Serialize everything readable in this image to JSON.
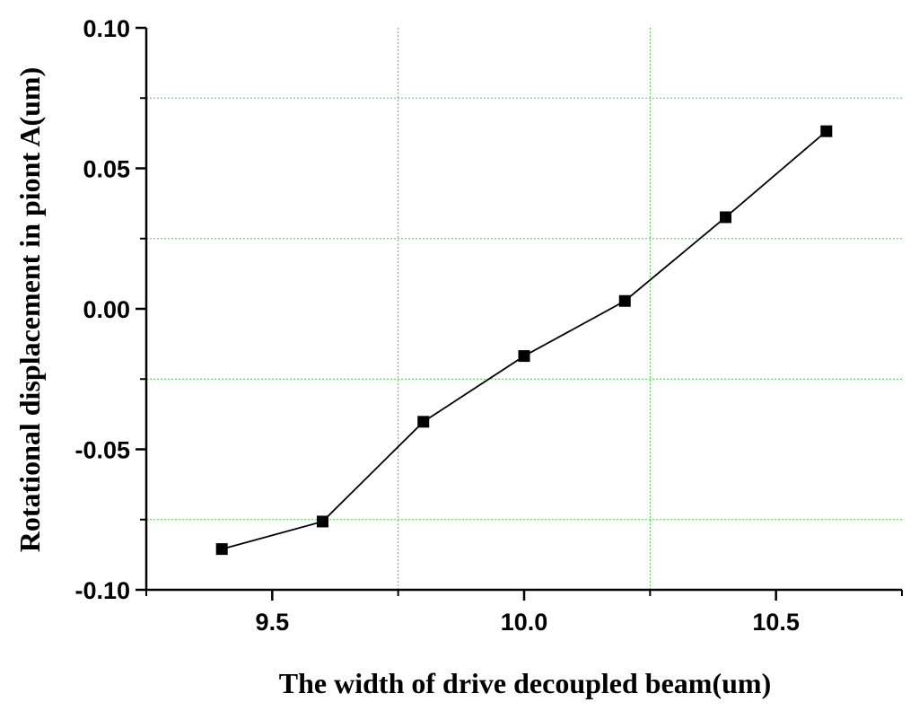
{
  "chart_data": {
    "type": "line",
    "title": "",
    "xlabel": "The width of drive decoupled beam(um)",
    "ylabel": "Rotational displacement in piont A(um)",
    "xlim": [
      9.25,
      10.75
    ],
    "ylim": [
      -0.1,
      0.1
    ],
    "x_ticks": [
      9.5,
      10.0,
      10.5
    ],
    "x_tick_labels": [
      "9.5",
      "10.0",
      "10.5"
    ],
    "y_ticks": [
      -0.1,
      -0.05,
      0.0,
      0.05,
      0.1
    ],
    "y_tick_labels": [
      "-0.10",
      "-0.05",
      "0.00",
      "0.05",
      "0.10"
    ],
    "grid": true,
    "grid_color": "#33dd33",
    "x_grid_lines": [
      9.75,
      10.25
    ],
    "y_grid_lines": [
      -0.075,
      -0.025,
      0.025,
      0.075
    ],
    "series": [
      {
        "x": [
          9.4,
          9.6,
          9.8,
          10.0,
          10.2,
          10.4,
          10.6
        ],
        "values": [
          -0.0855,
          -0.0757,
          -0.0402,
          -0.0168,
          0.0028,
          0.0326,
          0.0632
        ],
        "color": "#000000",
        "marker": "square"
      }
    ]
  }
}
